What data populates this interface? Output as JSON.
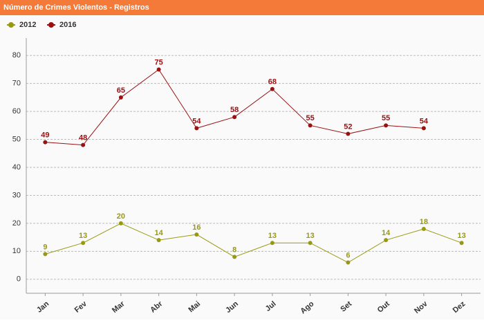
{
  "chart_data": {
    "type": "line",
    "title": "Número de Crimes Violentos - Registros",
    "categories": [
      "Jan",
      "Fev",
      "Mar",
      "Abr",
      "Mai",
      "Jun",
      "Jul",
      "Ago",
      "Set",
      "Out",
      "Nov",
      "Dez"
    ],
    "series": [
      {
        "name": "2012",
        "color": "#999911",
        "values": [
          9,
          13,
          20,
          14,
          16,
          8,
          13,
          13,
          6,
          14,
          18,
          13
        ]
      },
      {
        "name": "2016",
        "color": "#991111",
        "values": [
          49,
          48,
          65,
          75,
          54,
          58,
          68,
          55,
          52,
          55,
          54,
          null
        ]
      }
    ],
    "ylim": [
      -5,
      85
    ],
    "yticks": [
      0,
      10,
      20,
      30,
      40,
      50,
      60,
      70,
      80
    ],
    "grid": true
  }
}
